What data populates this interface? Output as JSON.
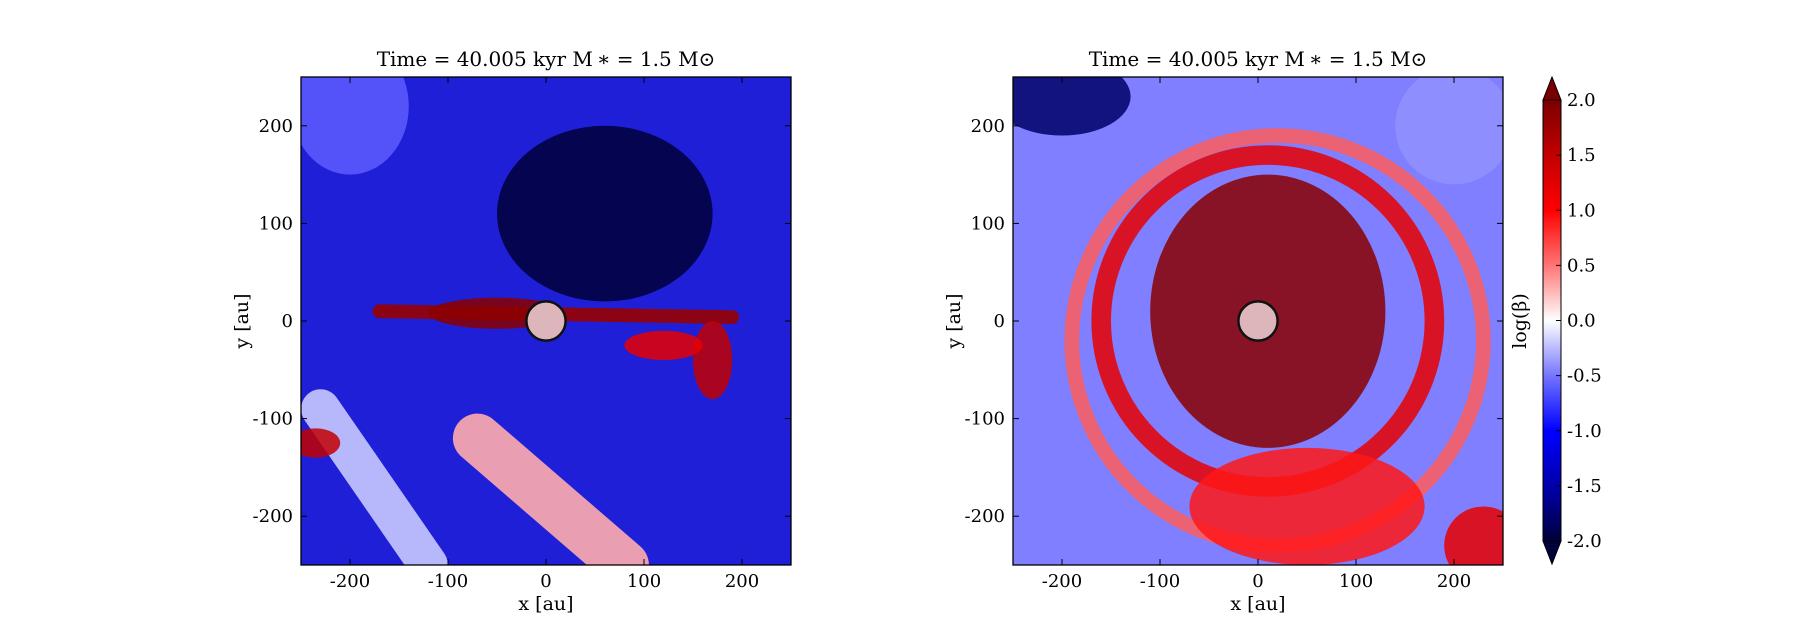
{
  "chart_data": [
    {
      "type": "heatmap",
      "title": "Time = 40.005 kyr    M ∗ = 1.5 M⊙",
      "xlabel": "x [au]",
      "ylabel": "y [au]",
      "xlim": [
        -250,
        250
      ],
      "ylim": [
        -250,
        250
      ],
      "xticks": [
        -200,
        -100,
        0,
        100,
        200
      ],
      "yticks": [
        -200,
        -100,
        0,
        100,
        200
      ],
      "color_range": [
        -2.0,
        2.0
      ],
      "sink": {
        "x": 0,
        "y": 0,
        "r": 20
      },
      "features": [
        {
          "kind": "band",
          "x1": -170,
          "y1": 10,
          "x2": 190,
          "y2": 4,
          "value": 1.8,
          "w": 14
        },
        {
          "kind": "blob",
          "x": -50,
          "y": 8,
          "rx": 70,
          "ry": 16,
          "value": 1.9
        },
        {
          "kind": "blob",
          "x": 170,
          "y": -40,
          "rx": 20,
          "ry": 40,
          "value": 1.5
        },
        {
          "kind": "blob",
          "x": 120,
          "y": -25,
          "rx": 40,
          "ry": 15,
          "value": 1.2
        },
        {
          "kind": "band",
          "x1": -230,
          "y1": -90,
          "x2": -120,
          "y2": -250,
          "value": -0.2,
          "w": 40
        },
        {
          "kind": "band",
          "x1": -70,
          "y1": -120,
          "x2": 80,
          "y2": -250,
          "value": 0.3,
          "w": 50
        },
        {
          "kind": "blob",
          "x": -200,
          "y": 220,
          "rx": 60,
          "ry": 70,
          "value": -0.6
        },
        {
          "kind": "blob",
          "x": -235,
          "y": -125,
          "rx": 25,
          "ry": 15,
          "value": 1.5
        },
        {
          "kind": "blob",
          "x": 60,
          "y": 110,
          "rx": 110,
          "ry": 90,
          "value": -2.0
        }
      ]
    },
    {
      "type": "heatmap",
      "title": "Time = 40.005 kyr    M ∗ = 1.5 M⊙",
      "xlabel": "x [au]",
      "ylabel": "y [au]",
      "xlim": [
        -250,
        250
      ],
      "ylim": [
        -250,
        250
      ],
      "xticks": [
        -200,
        -100,
        0,
        100,
        200
      ],
      "yticks": [
        -200,
        -100,
        0,
        100,
        200
      ],
      "color_range": [
        -2.0,
        2.0
      ],
      "sink": {
        "x": 0,
        "y": 0,
        "r": 20
      },
      "features": [
        {
          "kind": "blob",
          "x": 10,
          "y": 10,
          "rx": 120,
          "ry": 140,
          "value": 1.9
        },
        {
          "kind": "ring",
          "x": 10,
          "y": 0,
          "r": 170,
          "w": 20,
          "value": 1.2
        },
        {
          "kind": "ring",
          "x": 20,
          "y": -20,
          "r": 210,
          "w": 15,
          "value": 0.6
        },
        {
          "kind": "blob",
          "x": 50,
          "y": -190,
          "rx": 120,
          "ry": 60,
          "value": 0.9
        },
        {
          "kind": "blob",
          "x": 230,
          "y": -230,
          "rx": 40,
          "ry": 40,
          "value": 1.2
        },
        {
          "kind": "blob",
          "x": -200,
          "y": 230,
          "rx": 70,
          "ry": 40,
          "value": -1.8
        },
        {
          "kind": "blob",
          "x": 200,
          "y": 200,
          "rx": 60,
          "ry": 60,
          "value": -0.4
        }
      ]
    }
  ],
  "colorbar": {
    "label": "log(β)",
    "ticks": [
      "2.0",
      "1.5",
      "1.0",
      "0.5",
      "0.0",
      "-0.5",
      "-1.0",
      "-1.5",
      "-2.0"
    ],
    "tick_values": [
      2.0,
      1.5,
      1.0,
      0.5,
      0.0,
      -0.5,
      -1.0,
      -1.5,
      -2.0
    ],
    "range": [
      -2.0,
      2.0
    ],
    "extend": "both",
    "colors": {
      "low": "#00003a",
      "mid": "#ffffff",
      "high": "#7a0000"
    }
  }
}
